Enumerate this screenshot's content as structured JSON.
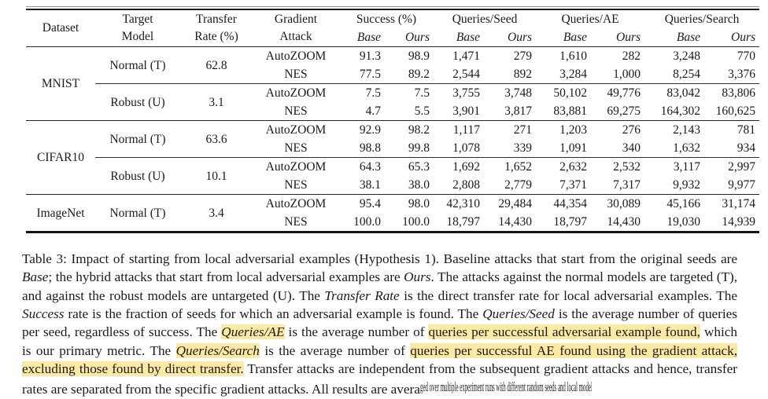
{
  "colors": {
    "text": "#1a1a1a",
    "highlight": "#fce9a2",
    "rule": "#222222",
    "background": "#ffffff"
  },
  "table": {
    "columns": [
      {
        "label": "Dataset"
      },
      {
        "label": "Target\nModel"
      },
      {
        "label": "Transfer\nRate (%)"
      },
      {
        "label": "Gradient\nAttack"
      },
      {
        "label": "Success (%)",
        "sub": [
          "Base",
          "Ours"
        ]
      },
      {
        "label": "Queries/Seed",
        "sub": [
          "Base",
          "Ours"
        ]
      },
      {
        "label": "Queries/AE",
        "sub": [
          "Base",
          "Ours"
        ]
      },
      {
        "label": "Queries/Search",
        "sub": [
          "Base",
          "Ours"
        ]
      }
    ],
    "groups": [
      {
        "dataset": "MNIST",
        "blocks": [
          {
            "target_model": "Normal (T)",
            "transfer_rate": "62.8",
            "rows": [
              {
                "attack": "AutoZOOM",
                "values": [
                  "91.3",
                  "98.9",
                  "1,471",
                  "279",
                  "1,610",
                  "282",
                  "3,248",
                  "770"
                ],
                "bold": [
                  0,
                  1,
                  0,
                  1,
                  0,
                  1,
                  0,
                  1
                ]
              },
              {
                "attack": "NES",
                "values": [
                  "77.5",
                  "89.2",
                  "2,544",
                  "892",
                  "3,284",
                  "1,000",
                  "8,254",
                  "3,376"
                ],
                "bold": [
                  0,
                  1,
                  0,
                  1,
                  0,
                  1,
                  0,
                  1
                ]
              }
            ]
          },
          {
            "target_model": "Robust (U)",
            "transfer_rate": "3.1",
            "rows": [
              {
                "attack": "AutoZOOM",
                "values": [
                  "7.5",
                  "7.5",
                  "3,755",
                  "3,748",
                  "50,102",
                  "49,776",
                  "83,042",
                  "83,806"
                ],
                "bold": [
                  0,
                  1,
                  0,
                  1,
                  0,
                  1,
                  1,
                  0
                ]
              },
              {
                "attack": "NES",
                "values": [
                  "4.7",
                  "5.5",
                  "3,901",
                  "3,817",
                  "83,881",
                  "69,275",
                  "164,302",
                  "160,625"
                ],
                "bold": [
                  0,
                  1,
                  0,
                  1,
                  0,
                  1,
                  0,
                  1
                ]
              }
            ]
          }
        ]
      },
      {
        "dataset": "CIFAR10",
        "blocks": [
          {
            "target_model": "Normal (T)",
            "transfer_rate": "63.6",
            "rows": [
              {
                "attack": "AutoZOOM",
                "values": [
                  "92.9",
                  "98.2",
                  "1,117",
                  "271",
                  "1,203",
                  "276",
                  "2,143",
                  "781"
                ],
                "bold": [
                  0,
                  1,
                  0,
                  1,
                  0,
                  1,
                  0,
                  1
                ]
              },
              {
                "attack": "NES",
                "values": [
                  "98.8",
                  "99.8",
                  "1,078",
                  "339",
                  "1,091",
                  "340",
                  "1,632",
                  "934"
                ],
                "bold": [
                  0,
                  1,
                  0,
                  1,
                  0,
                  1,
                  0,
                  1
                ]
              }
            ]
          },
          {
            "target_model": "Robust (U)",
            "transfer_rate": "10.1",
            "rows": [
              {
                "attack": "AutoZOOM",
                "values": [
                  "64.3",
                  "65.3",
                  "1,692",
                  "1,652",
                  "2,632",
                  "2,532",
                  "3,117",
                  "2,997"
                ],
                "bold": [
                  0,
                  1,
                  0,
                  1,
                  0,
                  1,
                  0,
                  1
                ]
              },
              {
                "attack": "NES",
                "values": [
                  "38.1",
                  "38.0",
                  "2,808",
                  "2,779",
                  "7,371",
                  "7,317",
                  "9,932",
                  "9,977"
                ],
                "bold": [
                  1,
                  0,
                  0,
                  1,
                  0,
                  1,
                  1,
                  0
                ]
              }
            ]
          }
        ]
      },
      {
        "dataset": "ImageNet",
        "blocks": [
          {
            "target_model": "Normal (T)",
            "transfer_rate": "3.4",
            "rows": [
              {
                "attack": "AutoZOOM",
                "values": [
                  "95.4",
                  "98.0",
                  "42,310",
                  "29,484",
                  "44,354",
                  "30,089",
                  "45,166",
                  "31,174"
                ],
                "bold": [
                  0,
                  1,
                  0,
                  1,
                  0,
                  1,
                  0,
                  1
                ]
              },
              {
                "attack": "NES",
                "values": [
                  "100.0",
                  "100.0",
                  "18,797",
                  "14,430",
                  "18,797",
                  "14,430",
                  "19,030",
                  "14,939"
                ],
                "bold": [
                  0,
                  1,
                  0,
                  1,
                  0,
                  1,
                  0,
                  1
                ]
              }
            ]
          }
        ]
      }
    ]
  },
  "caption": {
    "segments": [
      {
        "text": "Table 3: Impact of starting from local adversarial examples (Hypothesis 1). Baseline attacks that start from the original seeds are "
      },
      {
        "text": "Base",
        "italic": true
      },
      {
        "text": "; the hybrid attacks that start from local adversarial examples are "
      },
      {
        "text": "Ours",
        "italic": true
      },
      {
        "text": ". The attacks against the normal models are targeted (T), and against the robust models are untargeted (U). The "
      },
      {
        "text": "Transfer Rate",
        "italic": true
      },
      {
        "text": " is the direct transfer rate for local adversarial examples. The "
      },
      {
        "text": "Success",
        "italic": true
      },
      {
        "text": " rate is the fraction of seeds for which an adversarial example is found. The "
      },
      {
        "text": "Queries/Seed",
        "italic": true
      },
      {
        "text": " is the average number of queries per seed, regardless of success. The "
      },
      {
        "text": "Queries/AE",
        "italic": true,
        "highlight": true
      },
      {
        "text": " is the average number of "
      },
      {
        "text": "queries per successful adversarial example found,",
        "highlight": true
      },
      {
        "text": " which is our primary metric. The "
      },
      {
        "text": "Queries/Search",
        "italic": true,
        "highlight": true
      },
      {
        "text": " is the average number of "
      },
      {
        "text": "queries per successful AE found using the gradient attack, excluding those found by direct transfer.",
        "highlight": true
      },
      {
        "text": " Transfer attacks are independent from the subsequent gradient attacks and hence, transfer rates are separated from the specific gradient attacks. All results are avera"
      },
      {
        "text": "ged over multiple experiment runs with different random seeds and local models",
        "squish": true
      }
    ]
  }
}
